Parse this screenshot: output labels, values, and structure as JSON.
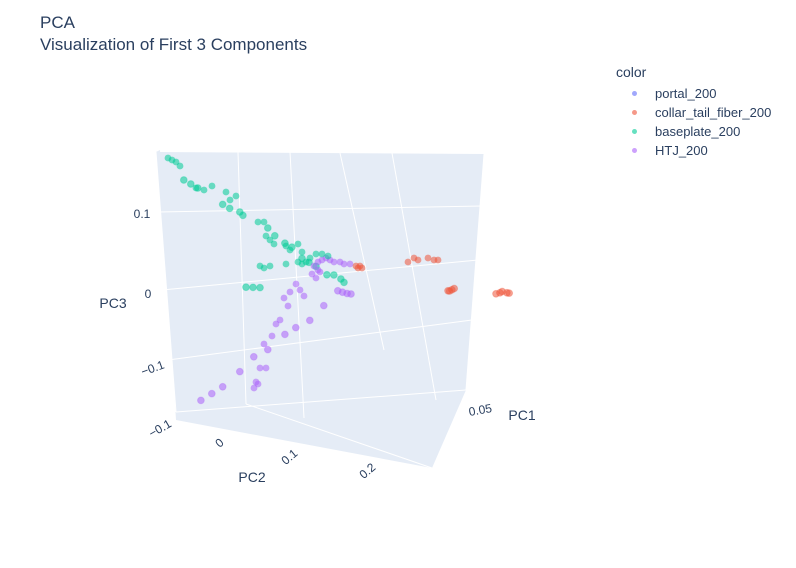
{
  "title": {
    "line1": "PCA",
    "line2": "Visualization of First 3 Components"
  },
  "legend": {
    "title": "color",
    "items": [
      {
        "label": "portal_200",
        "color": "#636efa"
      },
      {
        "label": "collar_tail_fiber_200",
        "color": "#ef553b"
      },
      {
        "label": "baseplate_200",
        "color": "#00cc96"
      },
      {
        "label": "HTJ_200",
        "color": "#ab63fa"
      }
    ]
  },
  "chart_data": {
    "type": "scatter3d",
    "title": "PCA",
    "subtitle": "Visualization of First 3 Components",
    "axes": {
      "x": {
        "label": "PC1",
        "ticks": [
          "0.05"
        ]
      },
      "y": {
        "label": "PC2",
        "ticks": [
          "−0.1",
          "0",
          "0.1",
          "0.2"
        ]
      },
      "z": {
        "label": "PC3",
        "ticks": [
          "−0.1",
          "0",
          "0.1"
        ]
      }
    },
    "background": "#e5ecf6",
    "grid": true,
    "legend_placement": "top-right",
    "series": [
      {
        "name": "portal_200",
        "color": "#636efa",
        "points": []
      },
      {
        "name": "collar_tail_fiber_200",
        "color": "#ef553b",
        "points": [
          [
            0.06,
            0.05,
            0.02
          ],
          [
            0.061,
            0.051,
            0.021
          ],
          [
            0.062,
            0.05,
            0.022
          ],
          [
            0.06,
            0.052,
            0.02
          ],
          [
            0.078,
            0.04,
            0.005
          ],
          [
            0.079,
            0.041,
            0.006
          ],
          [
            0.081,
            0.042,
            0.005
          ],
          [
            0.08,
            0.04,
            0.007
          ],
          [
            0.082,
            0.041,
            0.004
          ]
        ]
      },
      {
        "name": "baseplate_200",
        "color": "#00cc96",
        "points": [
          [
            0.01,
            -0.09,
            0.17
          ],
          [
            0.011,
            -0.085,
            0.165
          ],
          [
            0.012,
            -0.08,
            0.16
          ],
          [
            0.015,
            -0.06,
            0.14
          ],
          [
            0.016,
            -0.055,
            0.135
          ],
          [
            0.018,
            -0.05,
            0.13
          ],
          [
            0.019,
            -0.05,
            0.125
          ],
          [
            0.022,
            -0.03,
            0.11
          ],
          [
            0.023,
            -0.025,
            0.1
          ],
          [
            0.025,
            -0.02,
            0.09
          ],
          [
            0.026,
            -0.015,
            0.085
          ],
          [
            0.028,
            -0.01,
            0.07
          ],
          [
            0.029,
            -0.005,
            0.065
          ],
          [
            0.03,
            0.0,
            0.06
          ],
          [
            0.02,
            -0.05,
            0.03
          ],
          [
            0.021,
            -0.045,
            0.03
          ],
          [
            0.022,
            -0.04,
            0.03
          ],
          [
            0.031,
            0.01,
            0.05
          ],
          [
            0.032,
            0.015,
            0.05
          ],
          [
            0.033,
            0.02,
            0.045
          ],
          [
            0.034,
            0.02,
            0.04
          ]
        ]
      },
      {
        "name": "HTJ_200",
        "color": "#ab63fa",
        "points": [
          [
            0.032,
            0.02,
            0.03
          ],
          [
            0.033,
            0.022,
            0.028
          ],
          [
            0.034,
            0.024,
            0.026
          ],
          [
            0.035,
            0.025,
            0.025
          ],
          [
            0.03,
            0.01,
            0.01
          ],
          [
            0.028,
            0.0,
            -0.01
          ],
          [
            0.026,
            -0.01,
            -0.02
          ],
          [
            0.025,
            -0.02,
            -0.03
          ],
          [
            0.022,
            -0.03,
            -0.05
          ],
          [
            0.02,
            -0.04,
            -0.06
          ],
          [
            0.018,
            -0.05,
            -0.08
          ],
          [
            0.015,
            -0.06,
            -0.1
          ],
          [
            0.014,
            -0.07,
            -0.11
          ],
          [
            0.013,
            -0.08,
            -0.12
          ]
        ]
      }
    ]
  }
}
